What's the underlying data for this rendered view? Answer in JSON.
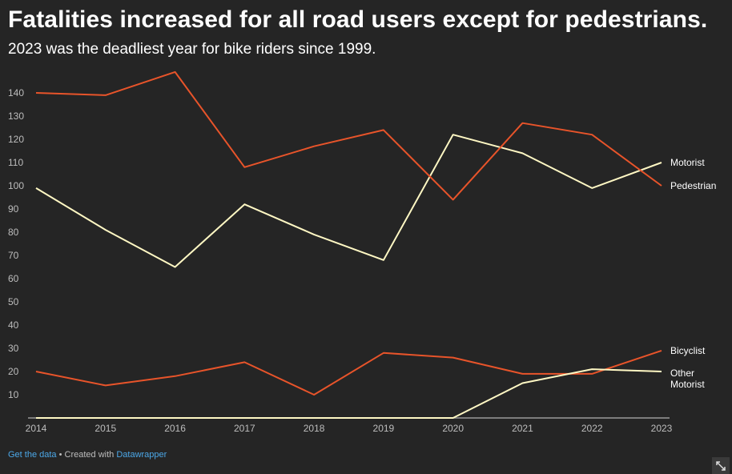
{
  "title": "Fatalities increased for all road users except for pedestrians.",
  "subtitle": "2023 was the deadliest year for bike riders since 1999.",
  "footer": {
    "get_data_label": "Get the data",
    "separator": " • Created with ",
    "datawrapper_label": "Datawrapper"
  },
  "colors": {
    "background": "#252525",
    "orange": "#e8542a",
    "cream": "#fff8c4",
    "tick_text": "#bdbdbd",
    "link": "#4ca8e8"
  },
  "icons": {
    "expand": "expand-diagonal-icon"
  },
  "chart_data": {
    "type": "line",
    "title": "Fatalities increased for all road users except for pedestrians.",
    "subtitle": "2023 was the deadliest year for bike riders since 1999.",
    "xlabel": "",
    "ylabel": "",
    "x": [
      2014,
      2015,
      2016,
      2017,
      2018,
      2019,
      2020,
      2021,
      2022,
      2023
    ],
    "ylim": [
      0,
      150
    ],
    "yticks": [
      10,
      20,
      30,
      40,
      50,
      60,
      70,
      80,
      90,
      100,
      110,
      120,
      130,
      140
    ],
    "grid": false,
    "legend": "direct labels at line ends (right)",
    "series": [
      {
        "name": "Motorist",
        "color": "#fff8c4",
        "values": [
          99,
          81,
          65,
          92,
          79,
          68,
          122,
          114,
          99,
          110
        ]
      },
      {
        "name": "Pedestrian",
        "color": "#e8542a",
        "values": [
          140,
          139,
          149,
          108,
          117,
          124,
          94,
          127,
          122,
          100
        ]
      },
      {
        "name": "Bicyclist",
        "color": "#e8542a",
        "values": [
          20,
          14,
          18,
          24,
          10,
          28,
          26,
          19,
          19,
          29
        ]
      },
      {
        "name": "Other Motorist",
        "color": "#fff8c4",
        "values": [
          0,
          0,
          0,
          0,
          0,
          0,
          0,
          15,
          21,
          20
        ]
      }
    ]
  }
}
